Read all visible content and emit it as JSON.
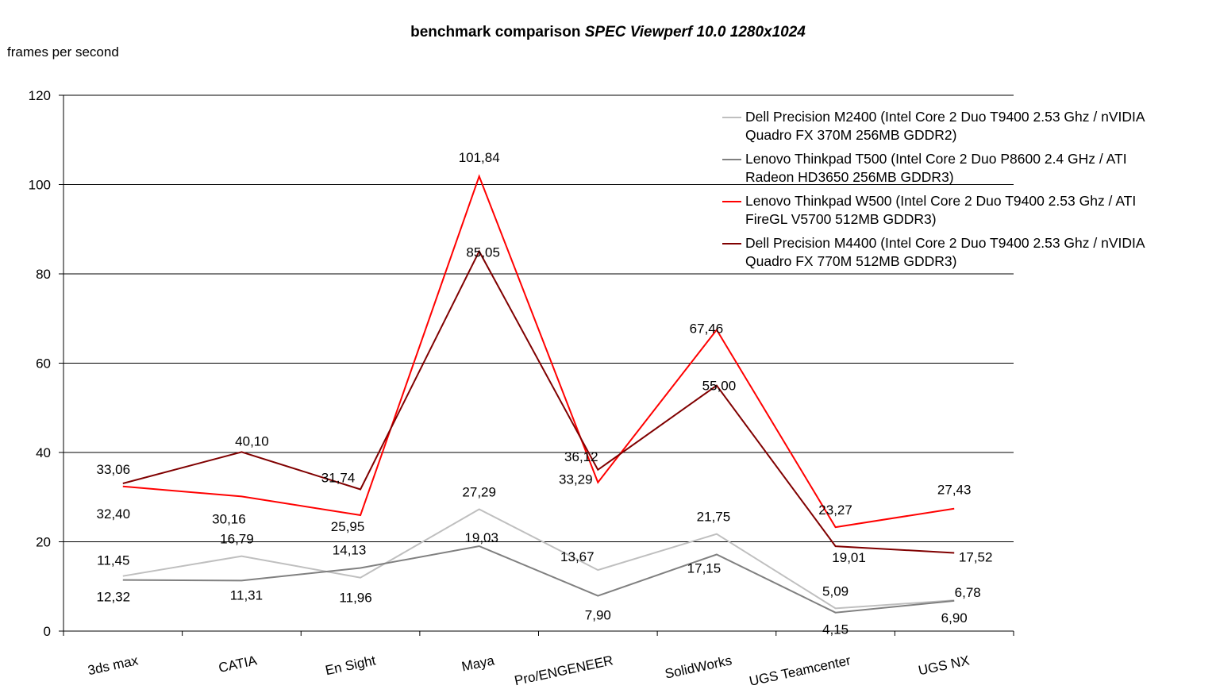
{
  "chart_data": {
    "type": "line",
    "title_main": "benchmark comparison",
    "title_italic": "SPEC Viewperf 10.0 1280x1024",
    "ylabel": "frames per second",
    "xlabel": "",
    "ylim": [
      0,
      120
    ],
    "yticks": [
      "0",
      "20",
      "40",
      "60",
      "80",
      "100",
      "120"
    ],
    "grid": true,
    "legend_position": "top-right",
    "categories": [
      "3ds max",
      "CATIA",
      "En Sight",
      "Maya",
      "Pro/ENGENEER",
      "SolidWorks",
      "UGS Teamcenter",
      "UGS NX"
    ],
    "series": [
      {
        "name": "Dell Precision M2400 (Intel Core 2 Duo T9400 2.53 Ghz / nVIDIA Quadro FX 370M 256MB GDDR2)",
        "color": "#bfbfbf",
        "values": [
          12.32,
          16.79,
          11.96,
          27.29,
          13.67,
          21.75,
          5.09,
          6.9
        ],
        "labels": [
          "12,32",
          "16,79",
          "11,96",
          "27,29",
          "13,67",
          "21,75",
          "5,09",
          "6,90"
        ]
      },
      {
        "name": "Lenovo Thinkpad T500 (Intel Core 2 Duo P8600 2.4 GHz / ATI Radeon HD3650 256MB GDDR3)",
        "color": "#808080",
        "values": [
          11.45,
          11.31,
          14.13,
          19.03,
          7.9,
          17.15,
          4.15,
          6.78
        ],
        "labels": [
          "11,45",
          "11,31",
          "14,13",
          "19,03",
          "7,90",
          "17,15",
          "4,15",
          "6,78"
        ]
      },
      {
        "name": "Lenovo Thinkpad W500 (Intel Core 2 Duo T9400 2.53 Ghz / ATI FireGL V5700 512MB GDDR3)",
        "color": "#ff0000",
        "values": [
          32.4,
          30.16,
          25.95,
          101.84,
          33.29,
          67.46,
          23.27,
          27.43
        ],
        "labels": [
          "32,40",
          "30,16",
          "25,95",
          "101,84",
          "33,29",
          "67,46",
          "23,27",
          "27,43"
        ]
      },
      {
        "name": "Dell Precision M4400 (Intel Core 2 Duo T9400 2.53 Ghz / nVIDIA Quadro FX 770M 512MB GDDR3)",
        "color": "#800000",
        "values": [
          33.06,
          40.1,
          31.74,
          85.05,
          36.12,
          55.0,
          19.01,
          17.52
        ],
        "labels": [
          "33,06",
          "40,10",
          "31,74",
          "85,05",
          "36,12",
          "55,00",
          "19,01",
          "17,52"
        ]
      }
    ]
  }
}
